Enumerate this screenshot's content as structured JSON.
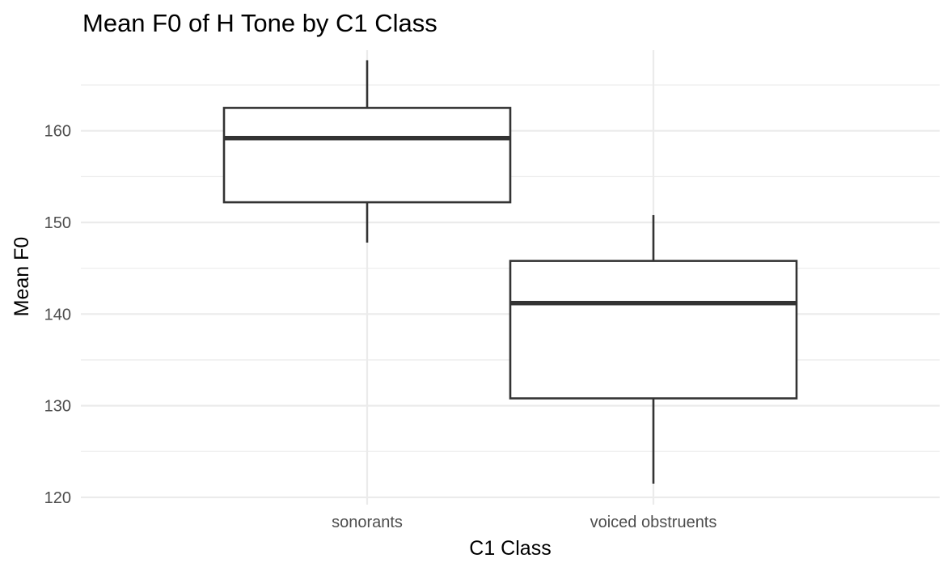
{
  "chart_data": {
    "type": "box",
    "title": "Mean F0 of H Tone by C1 Class",
    "xlabel": "C1 Class",
    "ylabel": "Mean F0",
    "categories": [
      "sonorants",
      "voiced obstruents"
    ],
    "boxes": [
      {
        "category": "sonorants",
        "min": 147.8,
        "q1": 152.2,
        "median": 159.2,
        "q3": 162.5,
        "max": 167.7
      },
      {
        "category": "voiced obstruents",
        "min": 121.5,
        "q1": 130.8,
        "median": 141.2,
        "q3": 145.8,
        "max": 150.8
      }
    ],
    "ylim": [
      119.2,
      168.8
    ],
    "yticks": [
      120,
      130,
      140,
      150,
      160
    ],
    "grid": true,
    "legend": "none"
  },
  "colors": {
    "grid": "#ebebeb",
    "box_stroke": "#333333",
    "box_fill": "#ffffff",
    "tick_text": "#4d4d4d"
  }
}
